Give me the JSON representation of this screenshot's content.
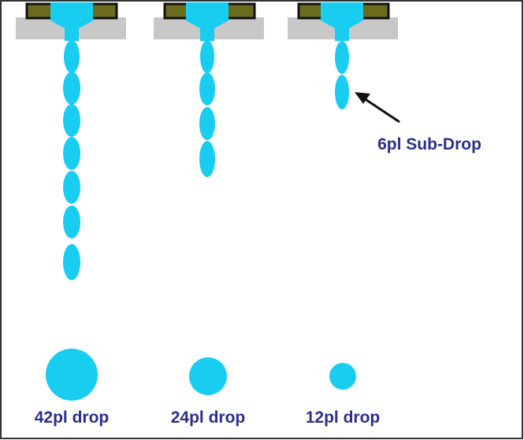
{
  "annotations": {
    "sub_drop": "6pl Sub-Drop"
  },
  "drops": [
    {
      "label": "42pl drop"
    },
    {
      "label": "24pl drop"
    },
    {
      "label": "12pl drop"
    }
  ]
}
